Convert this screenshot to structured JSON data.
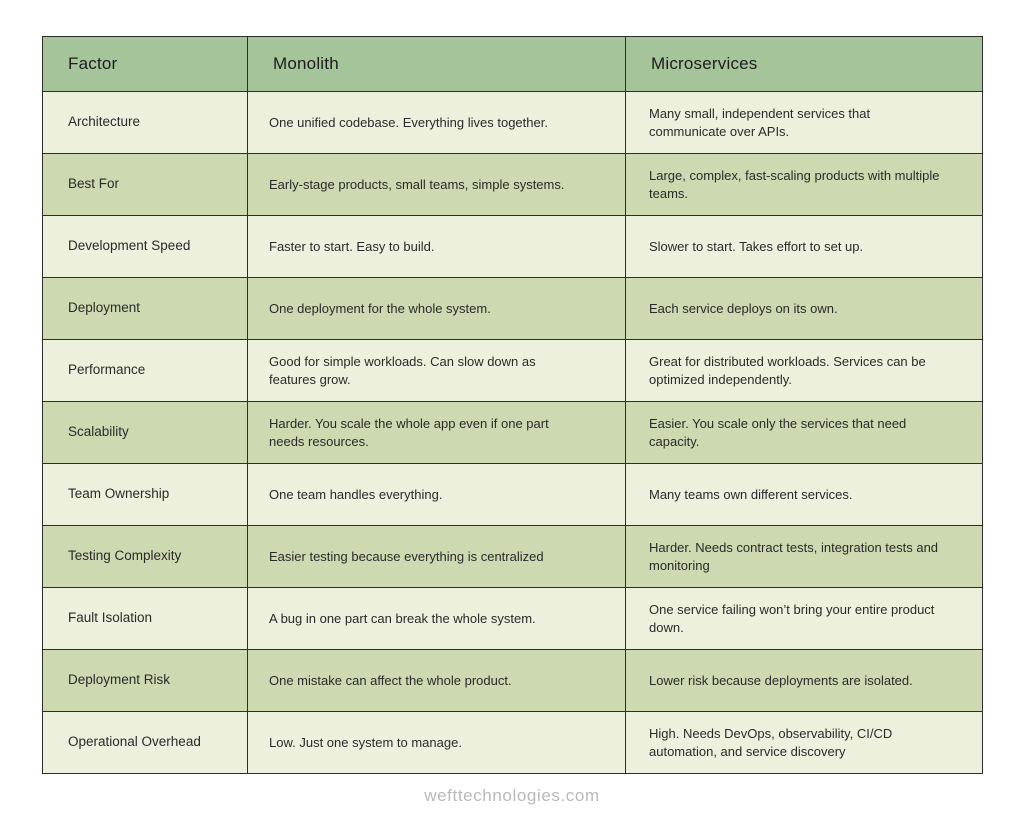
{
  "page": {
    "footer": "wefttechnologies.com"
  },
  "table": {
    "header": [
      "Factor",
      "Monolith",
      "Microservices"
    ],
    "rows": [
      {
        "factor": "Architecture",
        "monolith": "One unified codebase. Everything lives together.",
        "microservices": "Many small, independent services that communicate over APIs."
      },
      {
        "factor": "Best For",
        "monolith": "Early-stage products, small teams, simple systems.",
        "microservices": "Large, complex, fast-scaling products with multiple teams."
      },
      {
        "factor": "Development Speed",
        "monolith": "Faster to start. Easy to build.",
        "microservices": "Slower to start. Takes effort to set up."
      },
      {
        "factor": "Deployment",
        "monolith": "One deployment for the whole system.",
        "microservices": "Each service deploys on its own."
      },
      {
        "factor": "Performance",
        "monolith": "Good for simple workloads. Can slow down as features grow.",
        "microservices": "Great for distributed workloads. Services can be optimized independently."
      },
      {
        "factor": "Scalability",
        "monolith": "Harder. You scale the whole app even if one part needs resources.",
        "microservices": "Easier. You scale only the services that need capacity."
      },
      {
        "factor": "Team Ownership",
        "monolith": "One team handles everything.",
        "microservices": "Many teams own different services."
      },
      {
        "factor": "Testing Complexity",
        "monolith": "Easier testing because everything is centralized",
        "microservices": "Harder. Needs contract tests, integration tests and monitoring"
      },
      {
        "factor": "Fault Isolation",
        "monolith": "A bug in one part can break the whole system.",
        "microservices": "One service failing won’t bring your entire product down."
      },
      {
        "factor": "Deployment Risk",
        "monolith": "One mistake can affect the whole product.",
        "microservices": "Lower risk because deployments are isolated."
      },
      {
        "factor": "Operational Overhead",
        "monolith": "Low. Just one system to manage.",
        "microservices": "High. Needs DevOps, observability, CI/CD automation, and service discovery"
      }
    ],
    "colors": {
      "header_bg": "#a6c49a",
      "row_light": "#edf0dc",
      "row_green": "#cdd9b0",
      "border": "#2d2d2d",
      "footer_text": "#b9b9b9"
    }
  }
}
